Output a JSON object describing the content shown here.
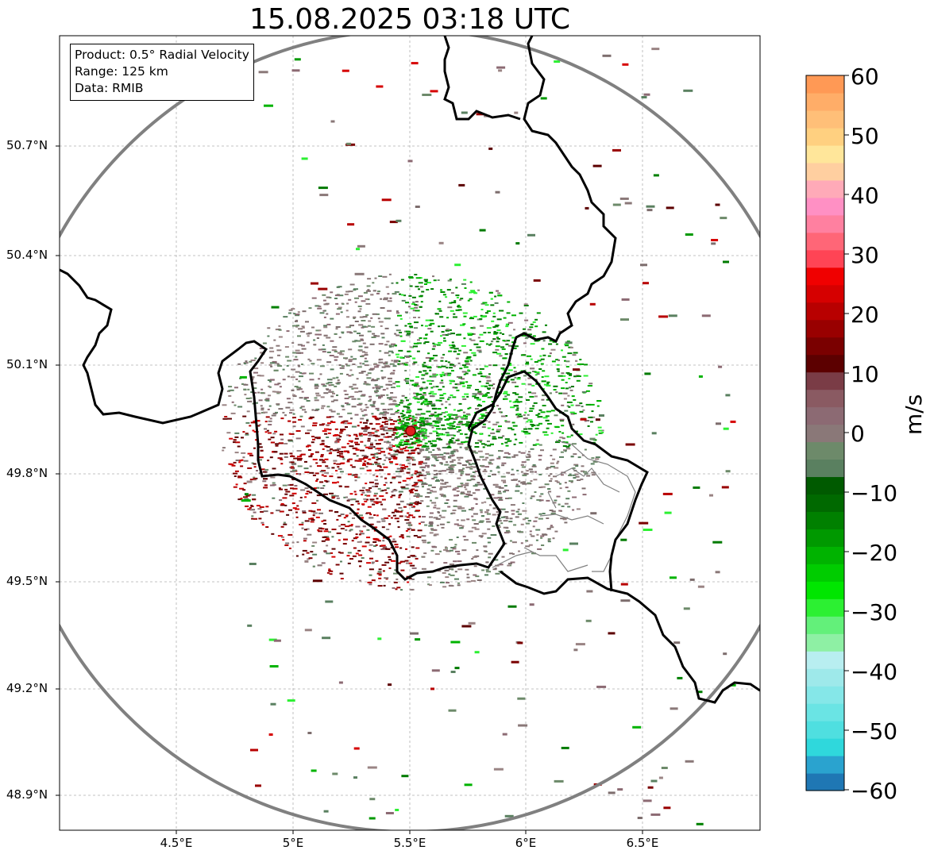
{
  "title": "15.08.2025 03:18 UTC",
  "info_box": {
    "product": "Product: 0.5° Radial Velocity",
    "range": "Range: 125 km",
    "data": "Data: RMIB"
  },
  "axes": {
    "lat_ticks": [
      "50.7°N",
      "50.4°N",
      "50.1°N",
      "49.8°N",
      "49.5°N",
      "49.2°N",
      "48.9°N"
    ],
    "lon_ticks": [
      "4.5°E",
      "5°E",
      "5.5°E",
      "6°E",
      "6.5°E"
    ]
  },
  "colorbar": {
    "unit": "m/s",
    "ticks": [
      "60",
      "50",
      "40",
      "30",
      "20",
      "10",
      "0",
      "−10",
      "−20",
      "−30",
      "−40",
      "−50",
      "−60"
    ],
    "min": -60,
    "max": 60,
    "colors": [
      "#1f77b4",
      "#2aa3cf",
      "#2fd8dc",
      "#4fdfe0",
      "#6ae4e4",
      "#85e7e8",
      "#9ee9ea",
      "#b8eef0",
      "#8ef0a4",
      "#63f07a",
      "#2cf032",
      "#00e600",
      "#00cc00",
      "#00b300",
      "#009900",
      "#008000",
      "#006900",
      "#005a00",
      "#5a8060",
      "#6d8a6a",
      "#8a7878",
      "#8c6a73",
      "#8a5a62",
      "#7a3c46",
      "#5c0000",
      "#7a0000",
      "#990000",
      "#b80000",
      "#d60000",
      "#f00000",
      "#ff4455",
      "#ff6677",
      "#ff80a0",
      "#ff90c4",
      "#ffaab8",
      "#ffcfa0",
      "#ffe69a",
      "#ffd080",
      "#ffbf78",
      "#ffad68",
      "#ff9955"
    ]
  }
}
